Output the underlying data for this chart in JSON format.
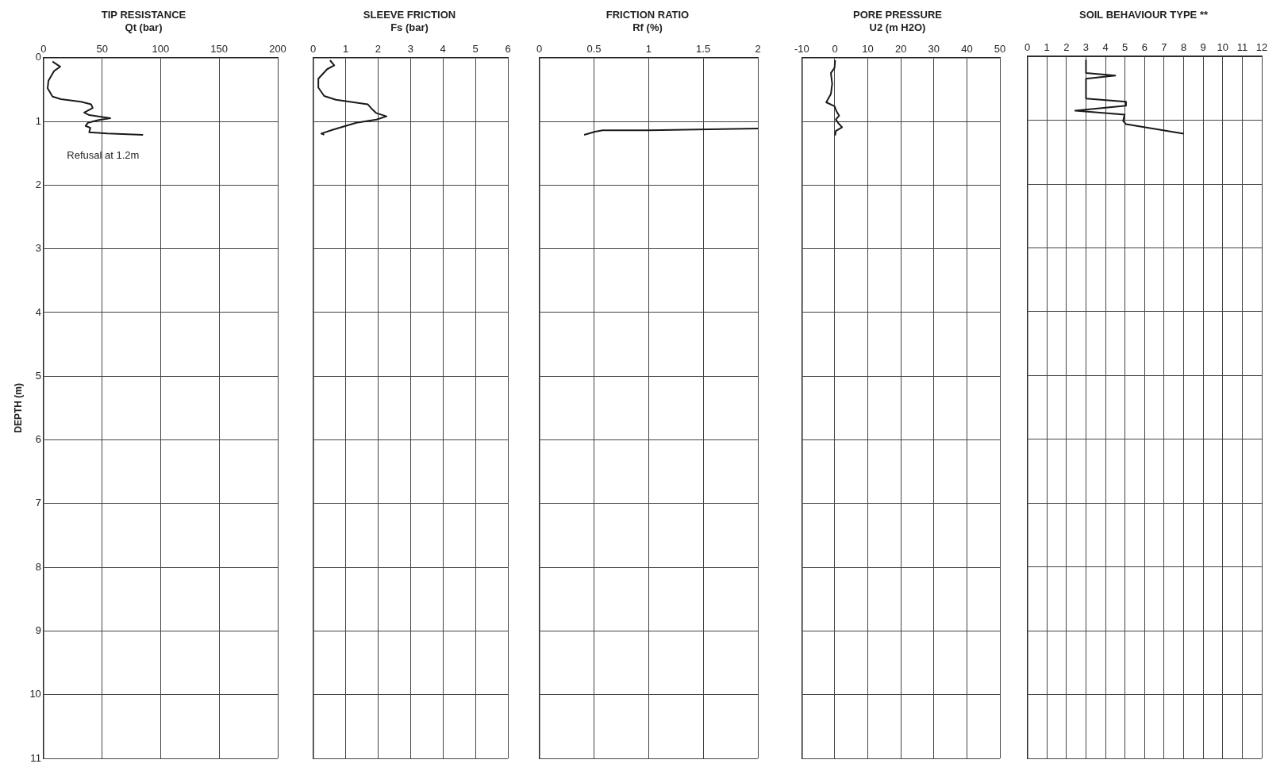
{
  "chart_data": [
    {
      "type": "line",
      "title": "TIP RESISTANCE",
      "subtitle": "Qt (bar)",
      "ylabel": "DEPTH (m)",
      "xlim": [
        0,
        200
      ],
      "xticks": [
        0,
        50,
        100,
        150,
        200
      ],
      "ylim": [
        11,
        0
      ],
      "yticks": [
        0,
        1,
        2,
        3,
        4,
        5,
        6,
        7,
        8,
        9,
        10,
        11
      ],
      "grid": true,
      "annotations": [
        "Refusal at 1.2m"
      ],
      "series": [
        {
          "color": "#1a1a1a",
          "x": [
            7.7,
            14.3,
            8.9,
            4.2,
            3.5,
            7.7,
            14.8,
            32,
            40.6,
            42,
            34.7,
            39,
            57,
            46.4,
            38,
            35.9,
            40,
            39,
            54.6,
            85
          ],
          "values": [
            0.06,
            0.14,
            0.21,
            0.36,
            0.48,
            0.61,
            0.65,
            0.69,
            0.73,
            0.79,
            0.86,
            0.9,
            0.95,
            0.98,
            1.02,
            1.07,
            1.1,
            1.17,
            1.19,
            1.21
          ]
        }
      ]
    },
    {
      "type": "line",
      "title": "SLEEVE FRICTION",
      "subtitle": "Fs (bar)",
      "xlim": [
        0,
        6
      ],
      "xticks": [
        0,
        1,
        2,
        3,
        4,
        5,
        6
      ],
      "ylim": [
        11,
        0
      ],
      "yticks": [
        0,
        1,
        2,
        3,
        4,
        5,
        6,
        7,
        8,
        9,
        10,
        11
      ],
      "grid": true,
      "tick_labels": "x",
      "series": [
        {
          "color": "#1a1a1a",
          "x": [
            0.52,
            0.65,
            0.43,
            0.16,
            0.16,
            0.34,
            0.7,
            1.68,
            1.82,
            1.95,
            2.26,
            1.95,
            1.33,
            0.61,
            0.25,
            0.34
          ],
          "values": [
            0.04,
            0.12,
            0.18,
            0.33,
            0.47,
            0.6,
            0.66,
            0.73,
            0.81,
            0.87,
            0.92,
            0.97,
            1.02,
            1.13,
            1.19,
            1.21
          ]
        }
      ]
    },
    {
      "type": "line",
      "title": "FRICTION RATIO",
      "subtitle": "Rf (%)",
      "xlim": [
        0,
        2
      ],
      "xticks": [
        0,
        0.5,
        1,
        1.5,
        2
      ],
      "ylim": [
        11,
        0
      ],
      "yticks": [
        0,
        1,
        2,
        3,
        4,
        5,
        6,
        7,
        8,
        9,
        10,
        11
      ],
      "grid": true,
      "tick_labels": "x",
      "series": [
        {
          "color": "#1a1a1a",
          "x": [
            0.41,
            0.51,
            0.58,
            1.0,
            2.0
          ],
          "values": [
            1.21,
            1.16,
            1.14,
            1.14,
            1.11
          ]
        }
      ]
    },
    {
      "type": "line",
      "title": "PORE PRESSURE",
      "subtitle": "U2 (m H2O)",
      "xlim": [
        -10,
        50
      ],
      "xticks": [
        -10,
        0,
        10,
        20,
        30,
        40,
        50
      ],
      "ylim": [
        11,
        0
      ],
      "yticks": [
        0,
        1,
        2,
        3,
        4,
        5,
        6,
        7,
        8,
        9,
        10,
        11
      ],
      "grid": true,
      "tick_labels": "x",
      "series": [
        {
          "color": "#1a1a1a",
          "x": [
            0.1,
            -0.1,
            -1.2,
            -0.8,
            -1.2,
            -2.6,
            -0.1,
            0.5,
            1.3,
            0.3,
            1.1,
            2.2,
            0.3,
            0.1
          ],
          "values": [
            0.04,
            0.16,
            0.24,
            0.41,
            0.57,
            0.7,
            0.76,
            0.84,
            0.91,
            0.97,
            1.03,
            1.09,
            1.15,
            1.22
          ]
        }
      ]
    },
    {
      "type": "line",
      "title": "SOIL BEHAVIOUR TYPE **",
      "xlim": [
        0,
        12
      ],
      "xticks": [
        0,
        1,
        2,
        3,
        4,
        5,
        6,
        7,
        8,
        9,
        10,
        11,
        12
      ],
      "ylim": [
        11,
        0
      ],
      "yticks": [
        0,
        1,
        2,
        3,
        4,
        5,
        6,
        7,
        8,
        9,
        10,
        11
      ],
      "grid": true,
      "tick_labels": "x",
      "series": [
        {
          "color": "#1a1a1a",
          "x": [
            3.0,
            3.0,
            4.5,
            3.0,
            3.0,
            5.05,
            5.05,
            2.45,
            4.98,
            4.9,
            5.05,
            8.0
          ],
          "values": [
            0.06,
            0.26,
            0.3,
            0.35,
            0.66,
            0.71,
            0.77,
            0.85,
            0.91,
            1.01,
            1.06,
            1.21
          ]
        }
      ]
    }
  ]
}
